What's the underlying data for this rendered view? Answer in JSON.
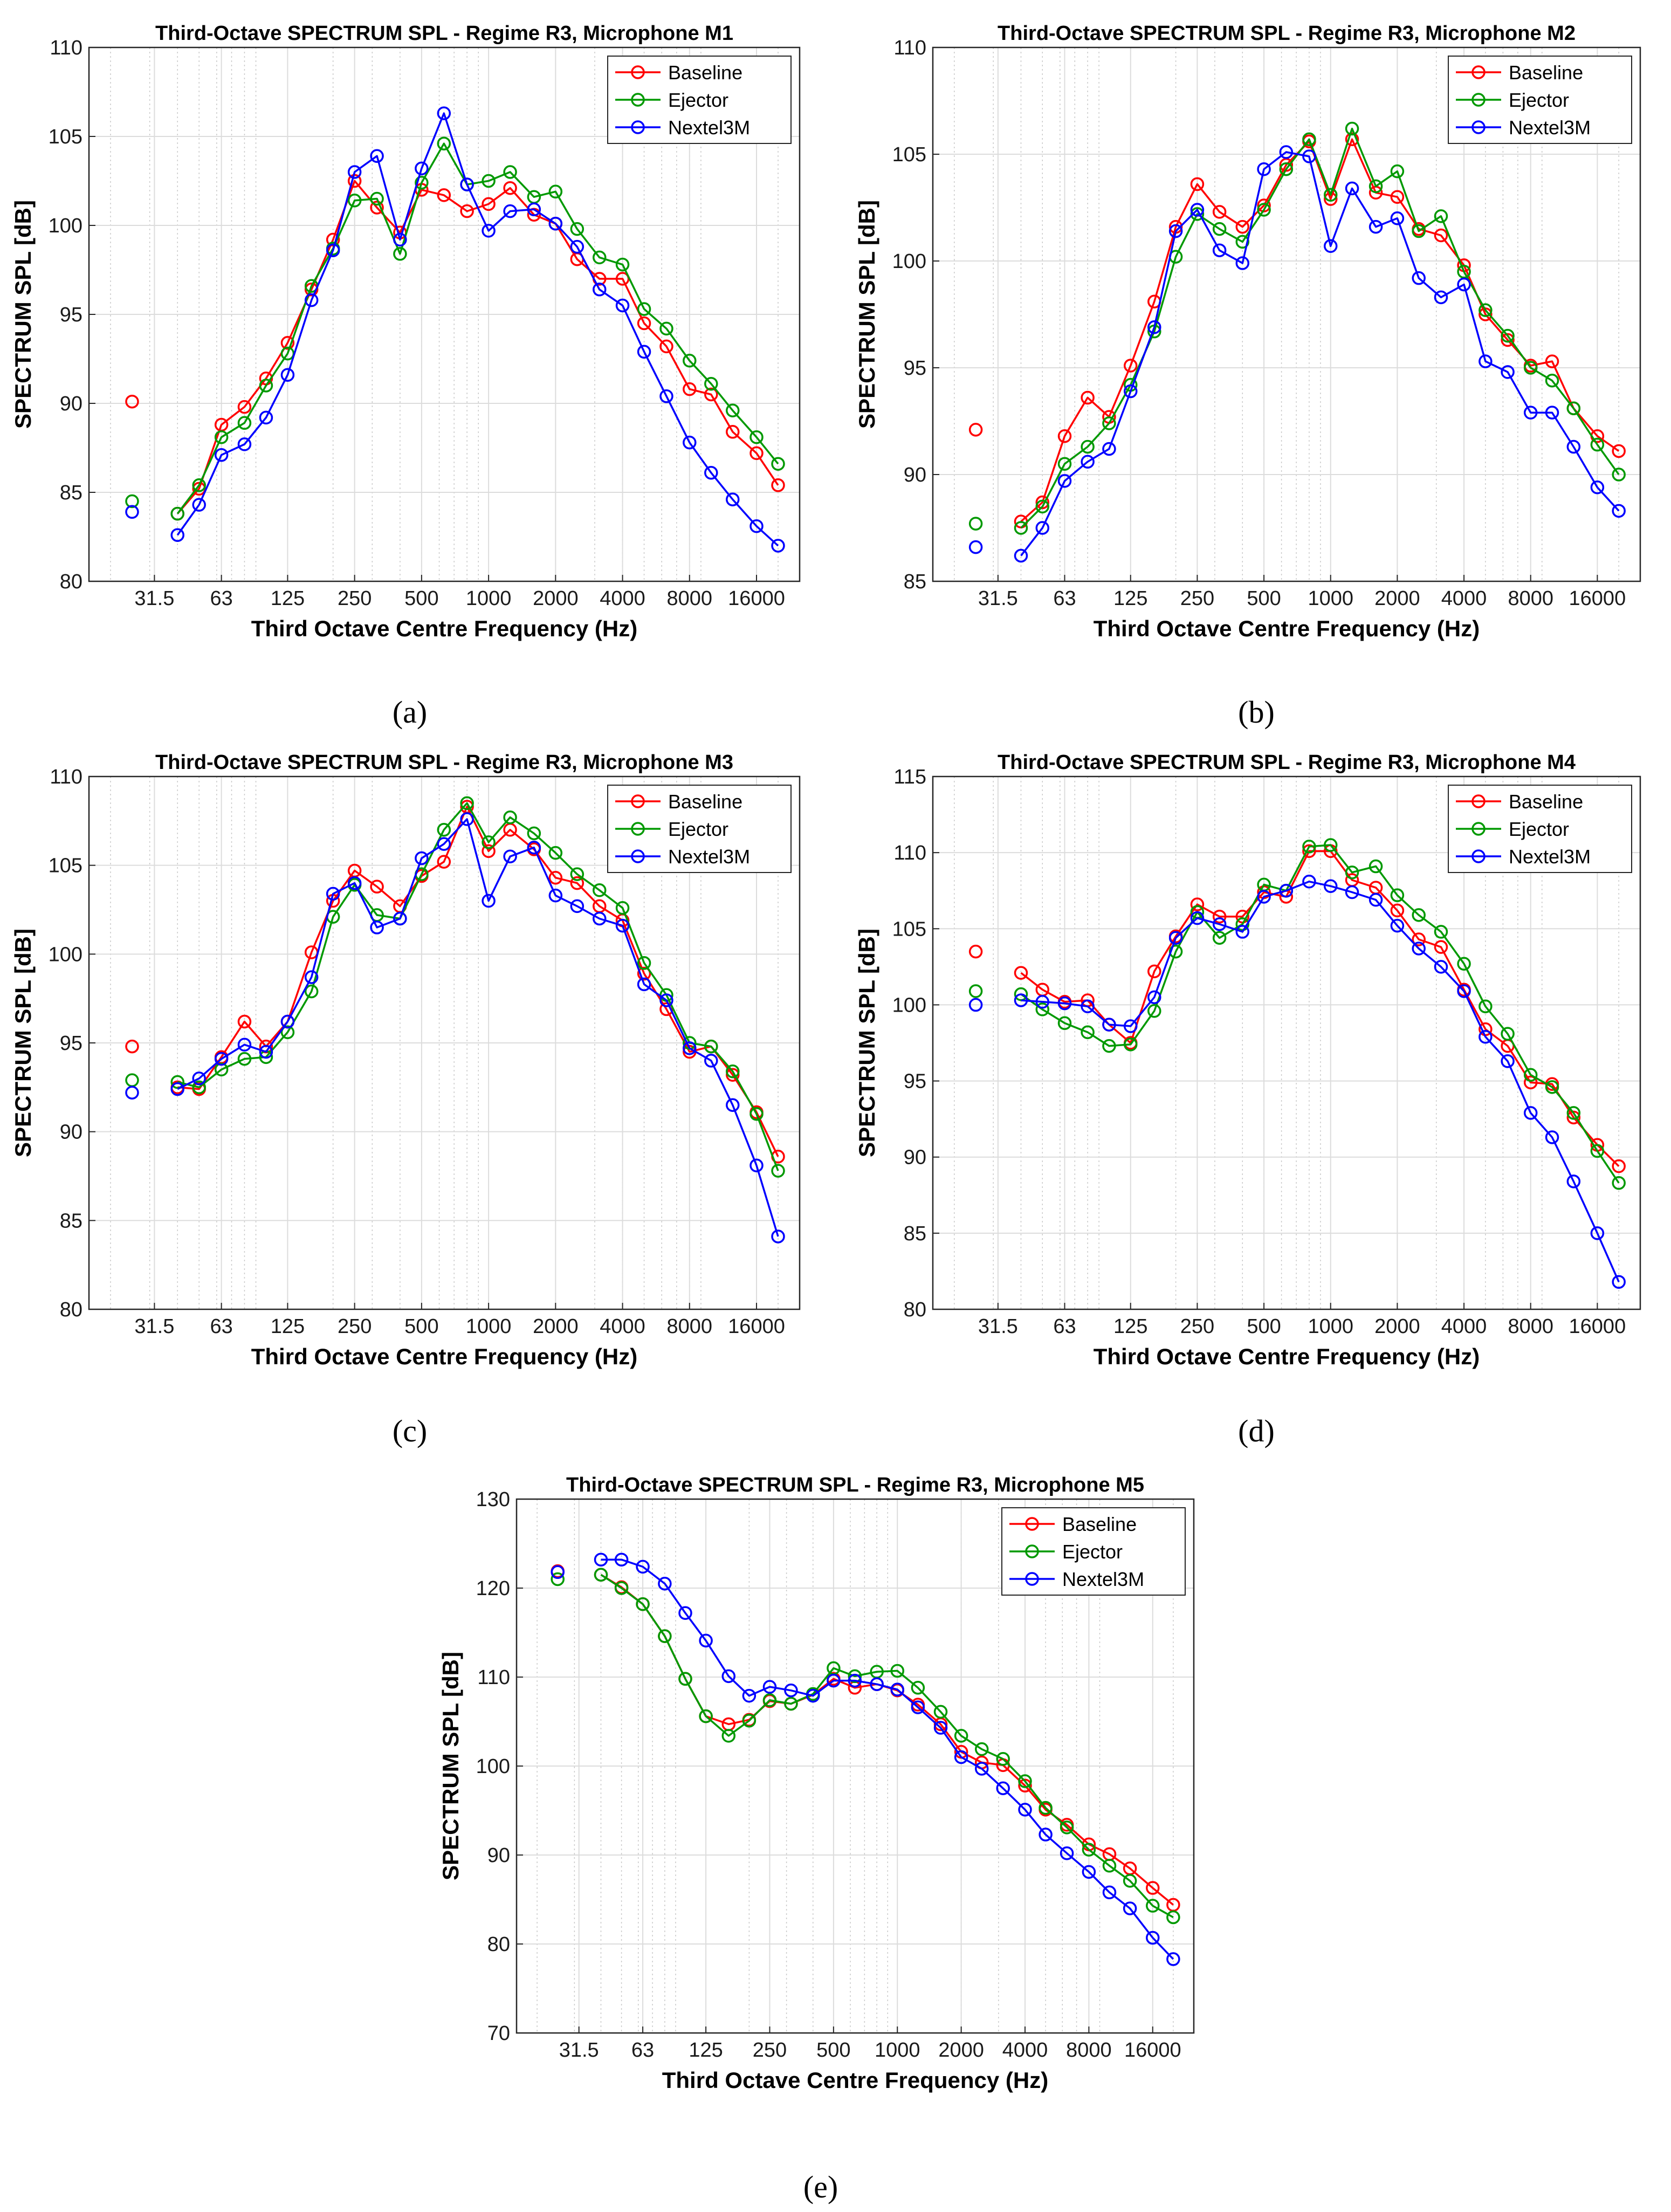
{
  "figure": {
    "captions": [
      "(a)",
      "(b)",
      "(c)",
      "(d)",
      "(e)"
    ]
  },
  "colors": {
    "Baseline": "#ff0000",
    "Ejector": "#009900",
    "Nextel3M": "#0000ff"
  },
  "chart_data": [
    {
      "type": "line",
      "title": "Third-Octave SPECTRUM SPL  - Regime R3, Microphone M1",
      "xlabel": "Third Octave Centre Frequency (Hz)",
      "ylabel": "SPECTRUM SPL [dB]",
      "xscale": "log",
      "xlim": [
        16,
        25000
      ],
      "ylim": [
        80,
        110
      ],
      "yticks": [
        80,
        85,
        90,
        95,
        100,
        105,
        110
      ],
      "xtick_labels": [
        "31.5",
        "63",
        "125",
        "250",
        "500",
        "1000",
        "2000",
        "4000",
        "8000",
        "16000"
      ],
      "legend": [
        "Baseline",
        "Ejector",
        "Nextel3M"
      ],
      "legend_position": "top-right",
      "grid": true,
      "x": [
        25,
        40,
        50,
        63,
        80,
        100,
        125,
        160,
        200,
        250,
        315,
        400,
        500,
        630,
        800,
        1000,
        1250,
        1600,
        2000,
        2500,
        3150,
        4000,
        5000,
        6300,
        8000,
        10000,
        12500,
        16000,
        20000
      ],
      "series": [
        {
          "name": "Baseline",
          "values": [
            90.1,
            83.8,
            85.2,
            88.8,
            89.8,
            91.4,
            93.4,
            96.4,
            99.2,
            102.5,
            101.0,
            99.6,
            102.0,
            101.7,
            100.8,
            101.2,
            102.1,
            100.6,
            100.1,
            98.1,
            97.0,
            97.0,
            94.5,
            93.2,
            90.8,
            90.5,
            88.4,
            87.2,
            85.4
          ]
        },
        {
          "name": "Ejector",
          "values": [
            84.5,
            83.8,
            85.4,
            88.1,
            88.9,
            91.0,
            92.8,
            96.6,
            98.7,
            101.4,
            101.5,
            98.4,
            102.4,
            104.6,
            102.3,
            102.5,
            103.0,
            101.6,
            101.9,
            99.8,
            98.2,
            97.8,
            95.3,
            94.2,
            92.4,
            91.1,
            89.6,
            88.1,
            86.6
          ]
        },
        {
          "name": "Nextel3M",
          "values": [
            83.9,
            82.6,
            84.3,
            87.1,
            87.7,
            89.2,
            91.6,
            95.8,
            98.6,
            103.0,
            103.9,
            99.2,
            103.2,
            106.3,
            102.3,
            99.7,
            100.8,
            100.9,
            100.1,
            98.8,
            96.4,
            95.5,
            92.9,
            90.4,
            87.8,
            86.1,
            84.6,
            83.1,
            82.0
          ]
        }
      ]
    },
    {
      "type": "line",
      "title": "Third-Octave SPECTRUM SPL  - Regime R3, Microphone M2",
      "xlabel": "Third Octave Centre Frequency (Hz)",
      "ylabel": "SPECTRUM SPL [dB]",
      "xscale": "log",
      "xlim": [
        16,
        25000
      ],
      "ylim": [
        85,
        110
      ],
      "yticks": [
        85,
        90,
        95,
        100,
        105,
        110
      ],
      "xtick_labels": [
        "31.5",
        "63",
        "125",
        "250",
        "500",
        "1000",
        "2000",
        "4000",
        "8000",
        "16000"
      ],
      "legend": [
        "Baseline",
        "Ejector",
        "Nextel3M"
      ],
      "legend_position": "top-right",
      "grid": true,
      "x": [
        25,
        40,
        50,
        63,
        80,
        100,
        125,
        160,
        200,
        250,
        315,
        400,
        500,
        630,
        800,
        1000,
        1250,
        1600,
        2000,
        2500,
        3150,
        4000,
        5000,
        6300,
        8000,
        10000,
        12500,
        16000,
        20000
      ],
      "series": [
        {
          "name": "Baseline",
          "values": [
            92.1,
            87.8,
            88.7,
            91.8,
            93.6,
            92.7,
            95.1,
            98.1,
            101.6,
            103.6,
            102.3,
            101.6,
            102.6,
            104.5,
            105.6,
            102.9,
            105.7,
            103.2,
            103.0,
            101.5,
            101.2,
            99.8,
            97.5,
            96.3,
            95.1,
            95.3,
            93.1,
            91.8,
            91.1
          ]
        },
        {
          "name": "Ejector",
          "values": [
            87.7,
            87.5,
            88.5,
            90.5,
            91.3,
            92.4,
            94.2,
            96.7,
            100.2,
            102.2,
            101.5,
            100.9,
            102.4,
            104.3,
            105.7,
            103.1,
            106.2,
            103.5,
            104.2,
            101.4,
            102.1,
            99.5,
            97.7,
            96.5,
            95.0,
            94.4,
            93.1,
            91.4,
            90.0
          ]
        },
        {
          "name": "Nextel3M",
          "values": [
            86.6,
            86.2,
            87.5,
            89.7,
            90.6,
            91.2,
            93.9,
            96.9,
            101.4,
            102.4,
            100.5,
            99.9,
            104.3,
            105.1,
            104.9,
            100.7,
            103.4,
            101.6,
            102.0,
            99.2,
            98.3,
            98.9,
            95.3,
            94.8,
            92.9,
            92.9,
            91.3,
            89.4,
            88.3
          ]
        }
      ]
    },
    {
      "type": "line",
      "title": "Third-Octave SPECTRUM SPL  - Regime R3, Microphone M3",
      "xlabel": "Third Octave Centre Frequency (Hz)",
      "ylabel": "SPECTRUM SPL [dB]",
      "xscale": "log",
      "xlim": [
        16,
        25000
      ],
      "ylim": [
        80,
        110
      ],
      "yticks": [
        80,
        85,
        90,
        95,
        100,
        105,
        110
      ],
      "xtick_labels": [
        "31.5",
        "63",
        "125",
        "250",
        "500",
        "1000",
        "2000",
        "4000",
        "8000",
        "16000"
      ],
      "legend": [
        "Baseline",
        "Ejector",
        "Nextel3M"
      ],
      "legend_position": "top-right",
      "grid": true,
      "x": [
        25,
        40,
        50,
        63,
        80,
        100,
        125,
        160,
        200,
        250,
        315,
        400,
        500,
        630,
        800,
        1000,
        1250,
        1600,
        2000,
        2500,
        3150,
        4000,
        5000,
        6300,
        8000,
        10000,
        12500,
        16000,
        20000
      ],
      "series": [
        {
          "name": "Baseline",
          "values": [
            94.8,
            92.5,
            92.4,
            94.2,
            96.2,
            94.8,
            96.2,
            100.1,
            103.0,
            104.7,
            103.8,
            102.7,
            104.4,
            105.2,
            108.3,
            105.8,
            107.0,
            105.9,
            104.3,
            104.0,
            102.7,
            101.9,
            98.9,
            96.9,
            94.5,
            94.8,
            93.2,
            91.1,
            88.6
          ]
        },
        {
          "name": "Ejector",
          "values": [
            92.9,
            92.8,
            92.5,
            93.5,
            94.1,
            94.2,
            95.6,
            97.9,
            102.1,
            103.9,
            102.2,
            102.0,
            104.5,
            107.0,
            108.5,
            106.3,
            107.7,
            106.8,
            105.7,
            104.5,
            103.6,
            102.6,
            99.5,
            97.7,
            95.0,
            94.8,
            93.4,
            91.0,
            87.8
          ]
        },
        {
          "name": "Nextel3M",
          "values": [
            92.2,
            92.4,
            93.0,
            94.1,
            94.9,
            94.5,
            96.2,
            98.7,
            103.4,
            104.0,
            101.5,
            102.0,
            105.4,
            106.2,
            107.6,
            103.0,
            105.5,
            106.0,
            103.3,
            102.7,
            102.0,
            101.6,
            98.3,
            97.4,
            94.7,
            94.0,
            91.5,
            88.1,
            84.1
          ]
        }
      ]
    },
    {
      "type": "line",
      "title": "Third-Octave SPECTRUM SPL  - Regime R3, Microphone M4",
      "xlabel": "Third Octave Centre Frequency (Hz)",
      "ylabel": "SPECTRUM SPL [dB]",
      "xscale": "log",
      "xlim": [
        16,
        25000
      ],
      "ylim": [
        80,
        115
      ],
      "yticks": [
        80,
        85,
        90,
        95,
        100,
        105,
        110,
        115
      ],
      "xtick_labels": [
        "31.5",
        "63",
        "125",
        "250",
        "500",
        "1000",
        "2000",
        "4000",
        "8000",
        "16000"
      ],
      "legend": [
        "Baseline",
        "Ejector",
        "Nextel3M"
      ],
      "legend_position": "top-right",
      "grid": true,
      "x": [
        25,
        40,
        50,
        63,
        80,
        100,
        125,
        160,
        200,
        250,
        315,
        400,
        500,
        630,
        800,
        1000,
        1250,
        1600,
        2000,
        2500,
        3150,
        4000,
        5000,
        6300,
        8000,
        10000,
        12500,
        16000,
        20000
      ],
      "series": [
        {
          "name": "Baseline",
          "values": [
            103.5,
            102.1,
            101.0,
            100.2,
            100.3,
            98.7,
            97.5,
            102.2,
            104.5,
            106.6,
            105.8,
            105.8,
            107.4,
            107.1,
            110.1,
            110.1,
            108.2,
            107.7,
            106.2,
            104.3,
            103.8,
            101.0,
            98.4,
            97.3,
            94.9,
            94.8,
            92.6,
            90.8,
            89.4
          ]
        },
        {
          "name": "Ejector",
          "values": [
            100.9,
            100.7,
            99.7,
            98.8,
            98.2,
            97.3,
            97.4,
            99.6,
            103.5,
            106.1,
            104.4,
            105.3,
            107.9,
            107.5,
            110.4,
            110.5,
            108.7,
            109.1,
            107.2,
            105.9,
            104.8,
            102.7,
            99.9,
            98.1,
            95.4,
            94.6,
            92.9,
            90.4,
            88.3
          ]
        },
        {
          "name": "Nextel3M",
          "values": [
            100.0,
            100.3,
            100.2,
            100.1,
            99.9,
            98.7,
            98.6,
            100.5,
            104.4,
            105.7,
            105.3,
            104.8,
            107.1,
            107.5,
            108.1,
            107.8,
            107.4,
            106.9,
            105.2,
            103.7,
            102.5,
            100.9,
            97.9,
            96.3,
            92.9,
            91.3,
            88.4,
            85.0,
            81.8
          ]
        }
      ]
    },
    {
      "type": "line",
      "title": "Third-Octave SPECTRUM SPL  - Regime R3, Microphone M5",
      "xlabel": "Third Octave Centre Frequency (Hz)",
      "ylabel": "SPECTRUM SPL [dB]",
      "xscale": "log",
      "xlim": [
        16,
        25000
      ],
      "ylim": [
        70,
        130
      ],
      "yticks": [
        70,
        80,
        90,
        100,
        110,
        120,
        130
      ],
      "xtick_labels": [
        "31.5",
        "63",
        "125",
        "250",
        "500",
        "1000",
        "2000",
        "4000",
        "8000",
        "16000"
      ],
      "legend": [
        "Baseline",
        "Ejector",
        "Nextel3M"
      ],
      "legend_position": "top-right",
      "grid": true,
      "x": [
        25,
        40,
        50,
        63,
        80,
        100,
        125,
        160,
        200,
        250,
        315,
        400,
        500,
        630,
        800,
        1000,
        1250,
        1600,
        2000,
        2500,
        3150,
        4000,
        5000,
        6300,
        8000,
        10000,
        12500,
        16000,
        20000
      ],
      "series": [
        {
          "name": "Baseline",
          "values": [
            121.9,
            121.5,
            120.1,
            118.2,
            114.6,
            109.8,
            105.6,
            104.7,
            105.2,
            107.3,
            107.0,
            108.0,
            109.8,
            108.8,
            109.2,
            108.5,
            106.9,
            104.7,
            101.6,
            100.4,
            100.1,
            97.8,
            95.1,
            93.4,
            91.2,
            90.1,
            88.5,
            86.3,
            84.4
          ]
        },
        {
          "name": "Ejector",
          "values": [
            121.0,
            121.5,
            120.0,
            118.2,
            114.6,
            109.8,
            105.6,
            103.4,
            105.1,
            107.4,
            107.0,
            108.1,
            111.0,
            110.1,
            110.6,
            110.7,
            108.8,
            106.1,
            103.4,
            101.9,
            100.8,
            98.3,
            95.3,
            93.1,
            90.6,
            88.8,
            87.1,
            84.3,
            83.0
          ]
        },
        {
          "name": "Nextel3M",
          "values": [
            121.8,
            123.2,
            123.2,
            122.4,
            120.5,
            117.2,
            114.1,
            110.1,
            107.9,
            108.9,
            108.5,
            107.9,
            109.6,
            109.6,
            109.2,
            108.6,
            106.6,
            104.3,
            101.0,
            99.7,
            97.5,
            95.1,
            92.3,
            90.2,
            88.1,
            85.8,
            84.0,
            80.7,
            78.3
          ]
        }
      ]
    }
  ]
}
